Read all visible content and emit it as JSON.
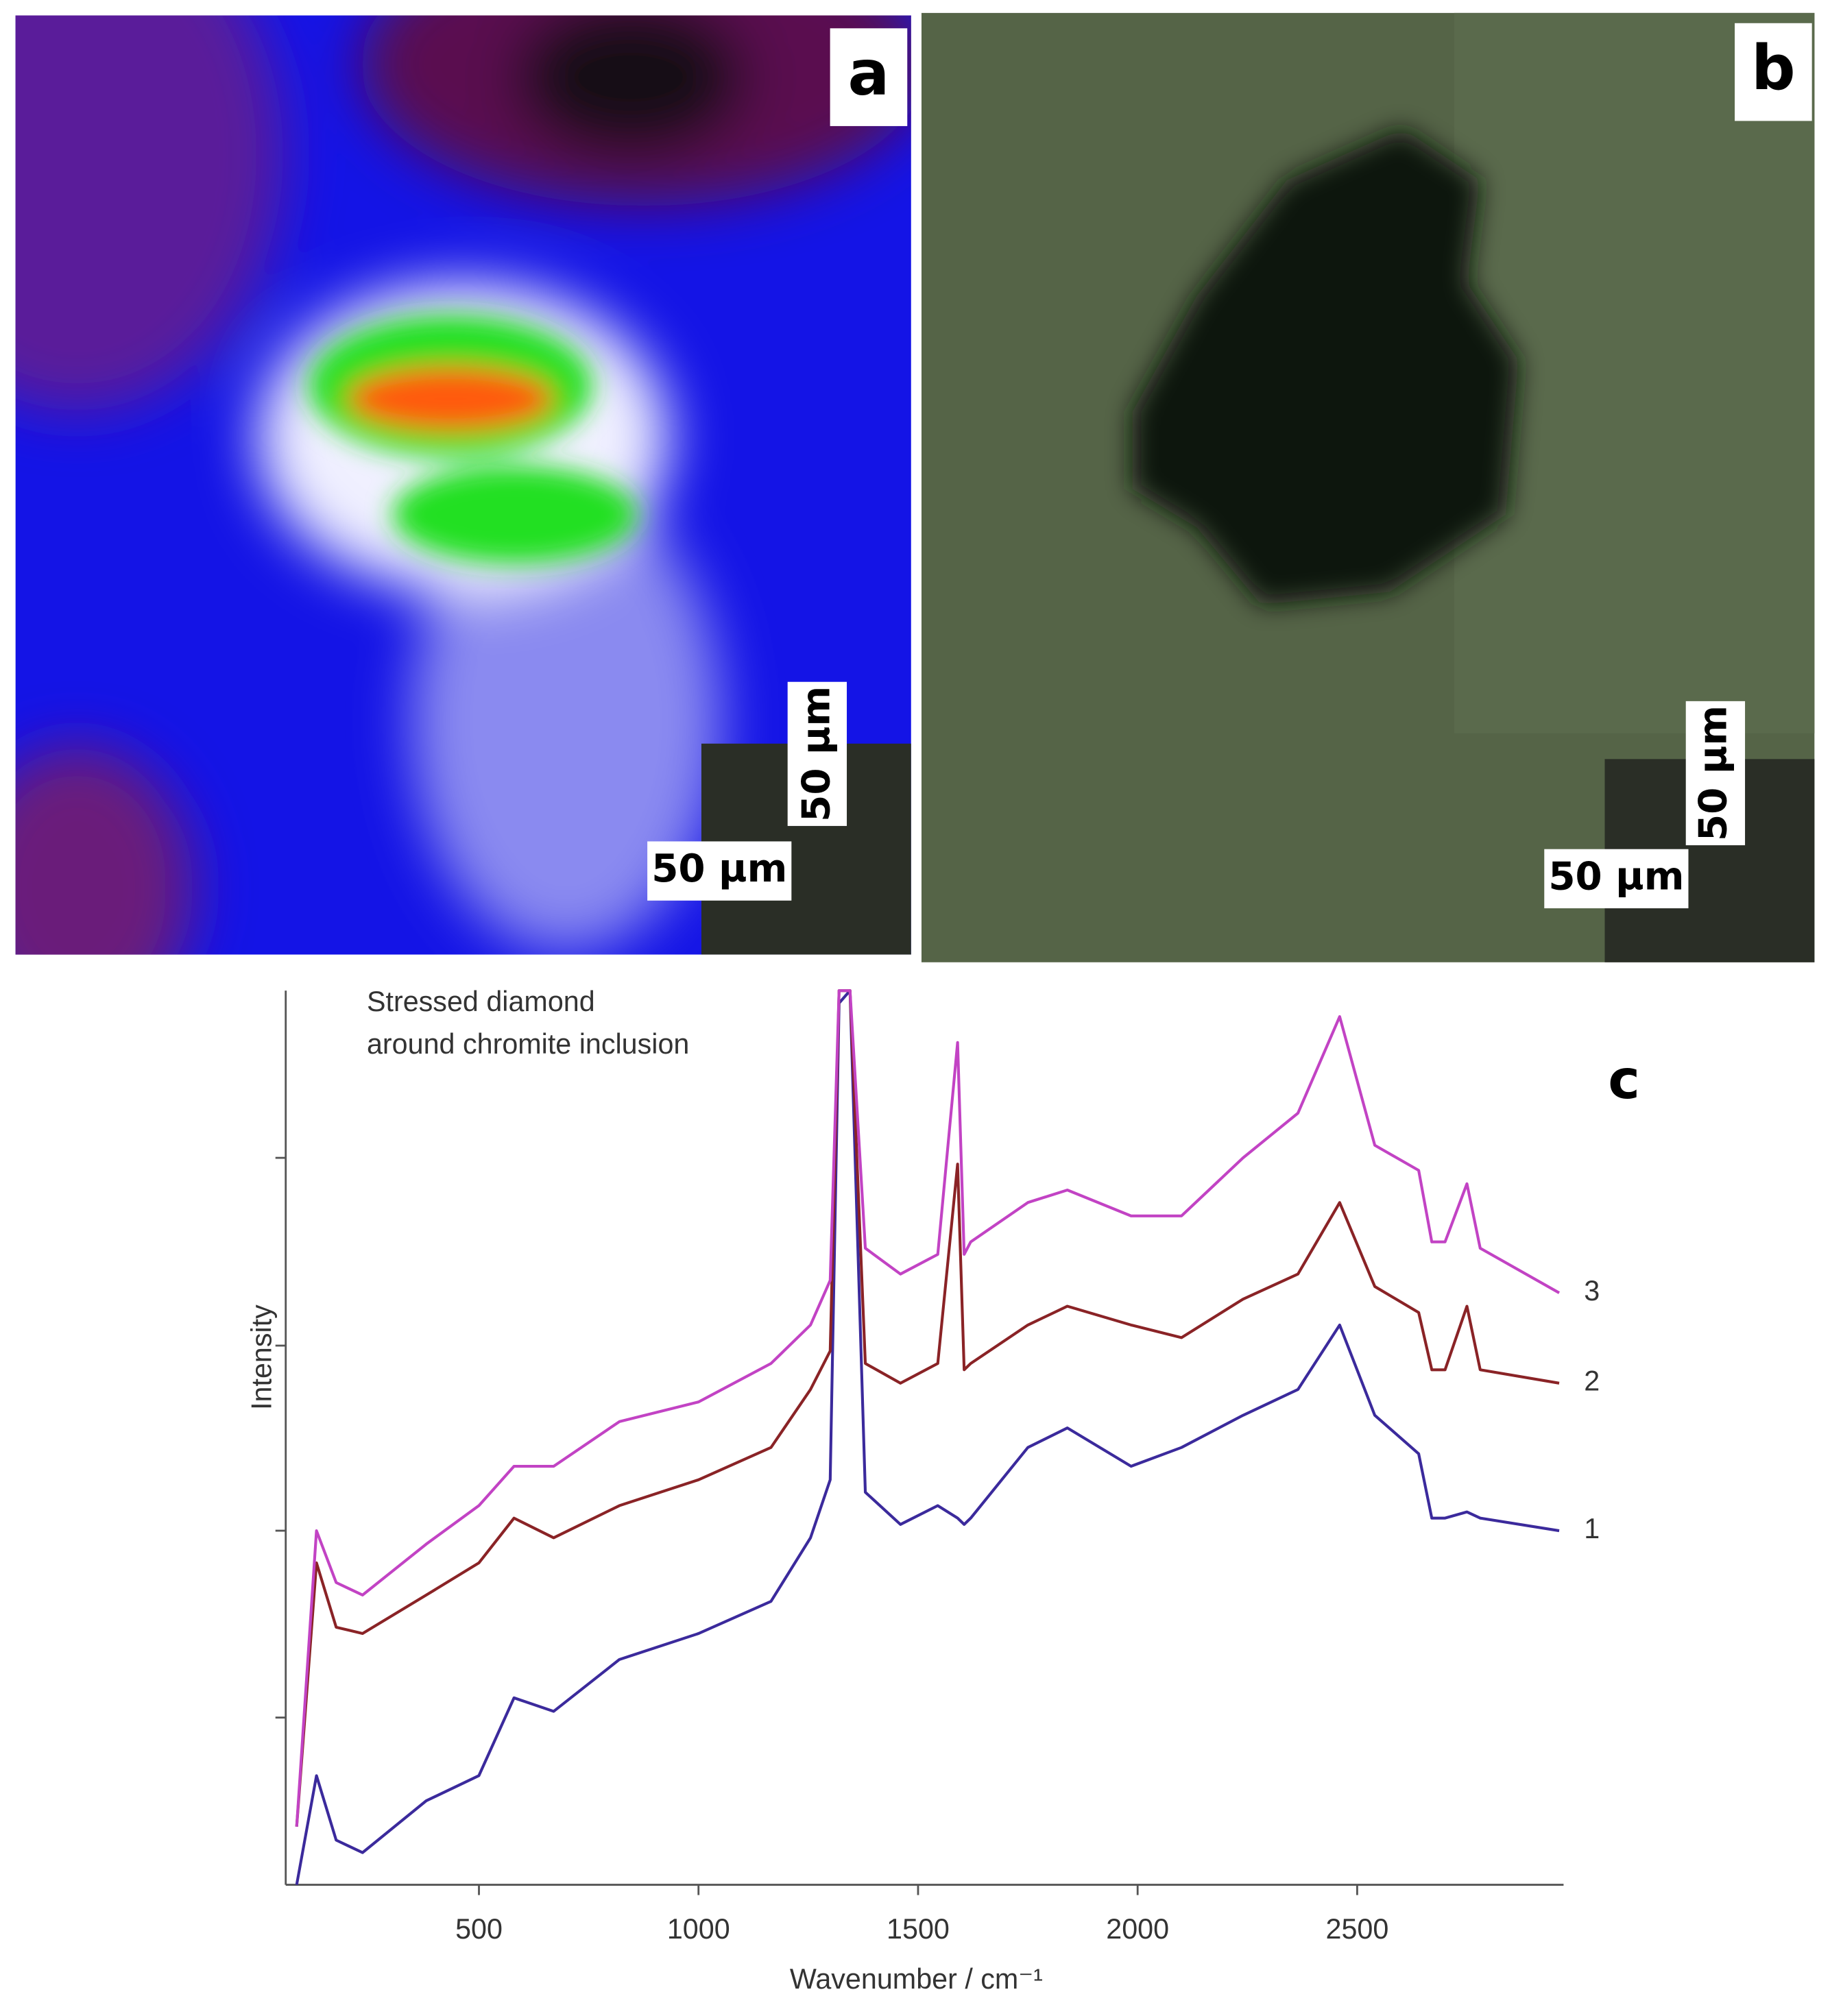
{
  "panels": [
    {
      "label": "a",
      "scale_bar_labels": [
        "50 µm",
        "50 µm"
      ]
    },
    {
      "label": "b",
      "scale_bar_labels": [
        "50 µm",
        "50 µm"
      ]
    },
    {
      "label": "c"
    }
  ],
  "chart_data": {
    "type": "line",
    "annotation": [
      "Stressed diamond",
      "around chromite inclusion"
    ],
    "xlabel": "Wavenumber / cm⁻¹",
    "ylabel": "Intensity",
    "x": [
      85,
      130,
      175,
      235,
      380,
      500,
      580,
      670,
      820,
      1000,
      1165,
      1255,
      1300,
      1320,
      1345,
      1380,
      1460,
      1545,
      1590,
      1605,
      1620,
      1750,
      1840,
      1985,
      2100,
      2240,
      2365,
      2460,
      2540,
      2640,
      2670,
      2700,
      2750,
      2780,
      2960
    ],
    "xlim": [
      60,
      2970
    ],
    "ylim": [
      0,
      100
    ],
    "xticks": [
      500,
      1000,
      1500,
      2000,
      2500
    ],
    "yticks": [
      18.7,
      39.6,
      60.3,
      81.3
    ],
    "series": [
      {
        "name": "1",
        "color": "#3b2a9c",
        "values": [
          0,
          12.2,
          5.0,
          3.6,
          9.4,
          12.2,
          20.9,
          19.4,
          25.2,
          28.1,
          31.7,
          38.8,
          45.3,
          98.6,
          100,
          43.9,
          40.3,
          42.4,
          41.0,
          40.3,
          41.0,
          48.9,
          51.1,
          46.8,
          48.9,
          52.5,
          55.4,
          62.6,
          52.5,
          48.2,
          41.0,
          41.0,
          41.7,
          41.0,
          39.6
        ]
      },
      {
        "name": "2",
        "color": "#8a2326",
        "values": [
          6.5,
          36.0,
          28.8,
          28.1,
          32.4,
          36.0,
          41.0,
          38.8,
          42.4,
          45.3,
          48.9,
          55.4,
          59.7,
          100,
          100,
          58.3,
          56.1,
          58.3,
          80.6,
          57.6,
          58.3,
          62.6,
          64.7,
          62.6,
          61.2,
          65.5,
          68.3,
          76.3,
          66.9,
          64.0,
          57.6,
          57.6,
          64.7,
          57.6,
          56.1
        ]
      },
      {
        "name": "3",
        "color": "#c243c4",
        "values": [
          6.5,
          39.6,
          33.8,
          32.4,
          38.1,
          42.4,
          46.8,
          46.8,
          51.8,
          54.0,
          58.3,
          62.6,
          67.6,
          100,
          100,
          71.2,
          68.3,
          70.5,
          94.2,
          70.5,
          71.9,
          76.3,
          77.7,
          74.8,
          74.8,
          81.3,
          86.3,
          97.1,
          82.7,
          79.9,
          71.9,
          71.9,
          78.4,
          71.2,
          66.2
        ]
      }
    ]
  }
}
